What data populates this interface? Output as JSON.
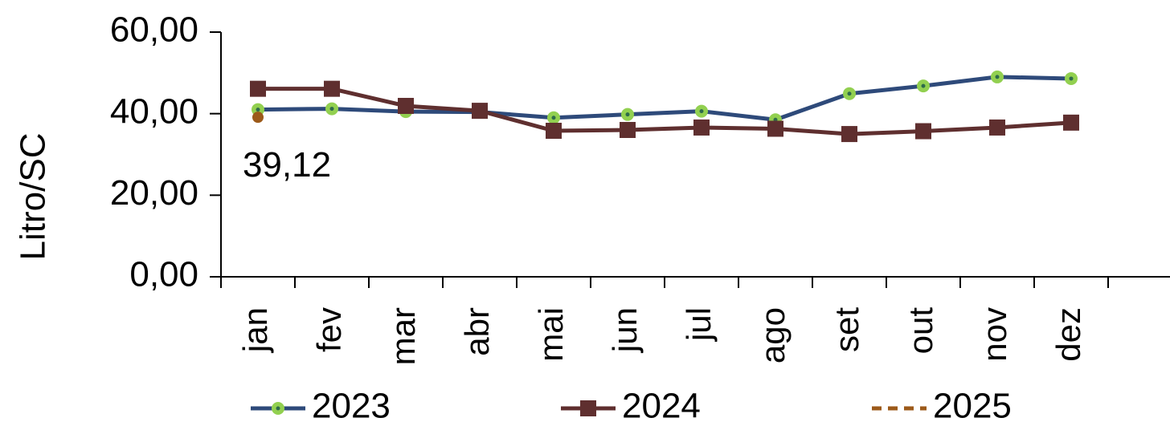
{
  "chart_data": {
    "type": "line",
    "y_label": "Litro/SC",
    "categories": [
      "jan",
      "fev",
      "mar",
      "abr",
      "mai",
      "jun",
      "jul",
      "ago",
      "set",
      "out",
      "nov",
      "dez",
      null
    ],
    "series": [
      {
        "name": "2023",
        "color": "#2e4a7a",
        "marker": "circle",
        "marker_color": "#92d050",
        "values": [
          41.0,
          41.2,
          40.5,
          40.4,
          39.0,
          39.8,
          40.6,
          38.5,
          44.9,
          46.8,
          49.0,
          48.6,
          null
        ]
      },
      {
        "name": "2024",
        "color": "#5f2f2f",
        "marker": "square",
        "marker_color": "#5f2f2f",
        "values": [
          46.1,
          46.1,
          41.9,
          40.7,
          35.8,
          36.0,
          36.6,
          36.3,
          35.0,
          35.7,
          36.6,
          37.8,
          null
        ]
      },
      {
        "name": "2025",
        "color": "#9c5a1a",
        "marker": "dot",
        "marker_color": "#9c5a1a",
        "dashed": true,
        "values": [
          39.12,
          null,
          null,
          null,
          null,
          null,
          null,
          null,
          null,
          null,
          null,
          null,
          null
        ],
        "value_labels": [
          "39,12",
          null,
          null,
          null,
          null,
          null,
          null,
          null,
          null,
          null,
          null,
          null,
          null
        ]
      }
    ],
    "ylim": [
      0,
      60
    ],
    "yticks": [
      {
        "value": 0,
        "label": "0,00"
      },
      {
        "value": 20,
        "label": "20,00"
      },
      {
        "value": 40,
        "label": "40,00"
      },
      {
        "value": 60,
        "label": "60,00"
      }
    ],
    "legend": "bottom"
  }
}
